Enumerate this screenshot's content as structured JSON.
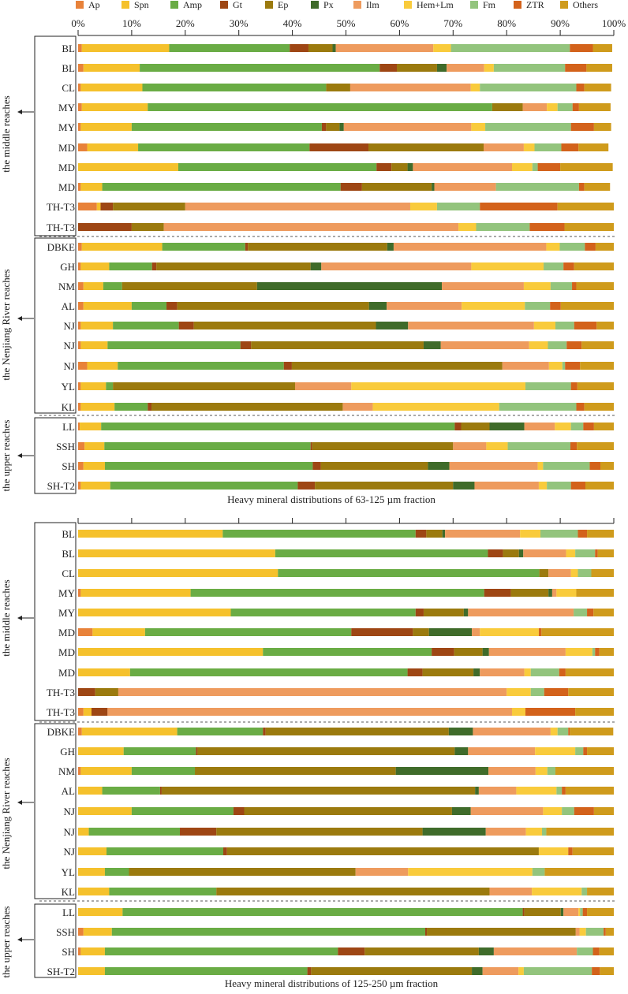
{
  "legend": [
    {
      "name": "Ap",
      "color": "#e8823a"
    },
    {
      "name": "Spn",
      "color": "#f5c12c"
    },
    {
      "name": "Amp",
      "color": "#6aac45"
    },
    {
      "name": "Gt",
      "color": "#9e4614"
    },
    {
      "name": "Ep",
      "color": "#9b7a0e"
    },
    {
      "name": "Px",
      "color": "#3f6b2a"
    },
    {
      "name": "Ilm",
      "color": "#ee9b5e"
    },
    {
      "name": "Hem+Lm",
      "color": "#f9cb3c"
    },
    {
      "name": "Fm",
      "color": "#93c47d"
    },
    {
      "name": "ZTR",
      "color": "#d3621b"
    },
    {
      "name": "Others",
      "color": "#cf9b1c"
    }
  ],
  "chart_data": [
    {
      "type": "bar",
      "orientation": "horizontal",
      "stacked": true,
      "title": "Heavy mineral distributions of 63-125 µm fraction",
      "xlim": [
        0,
        100
      ],
      "xticks": [
        "0%",
        "10%",
        "20%",
        "30%",
        "40%",
        "50%",
        "60%",
        "70%",
        "80%",
        "90%",
        "100%"
      ],
      "groups": [
        {
          "label": "the middle reaches",
          "rows": 10
        },
        {
          "label": "the Nenjiang River reaches",
          "rows": 9
        },
        {
          "label": "the upper reaches",
          "rows": 4
        }
      ],
      "series_names": [
        "Ap",
        "Spn",
        "Amp",
        "Gt",
        "Ep",
        "Px",
        "Ilm",
        "Hem+Lm",
        "Fm",
        "ZTR",
        "Others"
      ],
      "categories": [
        "BL",
        "BL",
        "CL",
        "MY",
        "MY",
        "MD",
        "MD",
        "MD",
        "TH-T3",
        "TH-T3",
        "DBKE",
        "GH",
        "NM",
        "AL",
        "NJ",
        "NJ",
        "NJ",
        "YL",
        "KL",
        "LL",
        "SSH",
        "SH",
        "SH-T2"
      ],
      "values": [
        [
          0.7,
          16.3,
          22.5,
          3.5,
          4.5,
          0.6,
          18.2,
          3.3,
          22.2,
          4.3,
          3.6
        ],
        [
          1.0,
          10.5,
          44.8,
          3.2,
          7.5,
          1.8,
          7.0,
          1.8,
          13.3,
          4.0,
          4.8
        ],
        [
          0.5,
          11.5,
          34.3,
          0,
          4.5,
          0,
          22.5,
          1.7,
          18.0,
          1.5,
          5.0
        ],
        [
          0.7,
          12.3,
          64.3,
          0,
          5.7,
          0,
          4.5,
          2.0,
          2.8,
          1.2,
          5.9
        ],
        [
          0.5,
          9.5,
          35.5,
          0.8,
          2.5,
          0.8,
          23.8,
          2.6,
          16.0,
          4.3,
          3.2
        ],
        [
          1.7,
          9.5,
          32.0,
          11.0,
          21.5,
          0,
          7.5,
          2.0,
          5.0,
          3.2,
          5.6
        ],
        [
          0,
          18.7,
          37.0,
          2.8,
          3.0,
          1.0,
          18.5,
          3.8,
          1.0,
          4.2,
          9.8
        ],
        [
          0.5,
          4.0,
          44.5,
          4.0,
          13.0,
          0.5,
          11.5,
          0,
          15.5,
          1.0,
          4.8
        ],
        [
          3.5,
          0.7,
          0,
          2.3,
          13.5,
          0,
          42.0,
          5.0,
          8.0,
          14.5,
          10.5
        ],
        [
          0,
          0,
          0,
          10.0,
          6.0,
          0,
          55.0,
          3.3,
          10.0,
          6.5,
          9.2
        ],
        [
          0.7,
          15.0,
          15.5,
          0.5,
          26.0,
          1.2,
          28.5,
          2.5,
          4.7,
          2.0,
          3.4
        ],
        [
          0.5,
          5.3,
          8.0,
          0.8,
          28.8,
          2.0,
          28.0,
          13.5,
          3.7,
          2.0,
          7.4
        ],
        [
          1.0,
          3.7,
          3.5,
          0,
          25.2,
          34.5,
          15.3,
          5.0,
          4.0,
          0.8,
          7.0
        ],
        [
          1.0,
          9.0,
          6.5,
          2.0,
          35.8,
          3.3,
          14.0,
          11.8,
          4.7,
          2.0,
          9.9
        ],
        [
          0.5,
          6.0,
          12.3,
          2.8,
          34.0,
          6.0,
          23.5,
          4.0,
          3.5,
          4.2,
          3.2
        ],
        [
          0.5,
          5.0,
          24.8,
          2.0,
          32.2,
          3.2,
          16.5,
          3.5,
          3.5,
          2.8,
          6.0
        ],
        [
          1.7,
          5.7,
          31.0,
          1.5,
          39.3,
          0,
          8.7,
          2.5,
          0.5,
          2.8,
          6.3
        ],
        [
          0.5,
          4.7,
          1.3,
          0,
          34.0,
          0,
          10.5,
          32.5,
          8.5,
          1.2,
          6.8
        ],
        [
          0.5,
          6.3,
          6.2,
          0.7,
          35.7,
          0,
          5.6,
          23.6,
          14.4,
          1.5,
          5.5
        ]
      ],
      "values_more": [
        [
          0.3,
          4.0,
          66.0,
          1.2,
          5.3,
          6.5,
          5.7,
          3.0,
          2.3,
          2.0,
          3.7
        ],
        [
          1.2,
          3.7,
          38.5,
          0.3,
          26.3,
          0,
          6.2,
          4.0,
          11.7,
          1.2,
          6.9
        ],
        [
          1.0,
          4.0,
          38.8,
          1.5,
          20.0,
          4.0,
          16.5,
          1.0,
          8.7,
          2.0,
          2.5
        ],
        [
          0.5,
          5.5,
          35.0,
          3.2,
          25.8,
          4.0,
          12.0,
          1.5,
          4.5,
          2.7,
          5.3
        ]
      ]
    },
    {
      "type": "bar",
      "orientation": "horizontal",
      "stacked": true,
      "title": "Heavy mineral distributions of 125-250 µm fraction",
      "xlim": [
        0,
        100
      ],
      "groups": [
        {
          "label": "the middle reaches",
          "rows": 10
        },
        {
          "label": "the Nenjiang River reaches",
          "rows": 9
        },
        {
          "label": "the upper reaches",
          "rows": 4
        }
      ],
      "series_names": [
        "Ap",
        "Spn",
        "Amp",
        "Gt",
        "Ep",
        "Px",
        "Ilm",
        "Hem+Lm",
        "Fm",
        "ZTR",
        "Others"
      ],
      "categories": [
        "BL",
        "BL",
        "CL",
        "MY",
        "MY",
        "MD",
        "MD",
        "MD",
        "TH-T3",
        "TH-T3",
        "DBKE",
        "GH",
        "NM",
        "AL",
        "NJ",
        "NJ",
        "NJ",
        "YL",
        "KL",
        "LL",
        "SSH",
        "SH",
        "SH-T2"
      ],
      "values": [
        [
          0,
          27.0,
          36.0,
          2.0,
          3.0,
          0.5,
          14.0,
          3.8,
          7.0,
          1.7,
          5.0
        ],
        [
          0,
          36.8,
          39.7,
          2.8,
          3.0,
          0.8,
          8.0,
          1.7,
          3.7,
          0.5,
          3.0
        ],
        [
          0,
          37.3,
          48.8,
          0,
          1.7,
          0,
          4.2,
          1.3,
          2.5,
          0,
          4.2
        ],
        [
          0.5,
          20.5,
          54.8,
          5.0,
          7.0,
          0.7,
          0.8,
          3.7,
          0,
          0,
          7.0
        ],
        [
          0,
          28.5,
          34.5,
          1.5,
          7.5,
          0.8,
          19.7,
          0,
          2.5,
          1.2,
          3.8
        ],
        [
          2.7,
          9.8,
          38.5,
          11.5,
          3.0,
          8.0,
          1.5,
          11.0,
          0,
          0.5,
          13.5
        ],
        [
          0,
          34.5,
          31.5,
          4.2,
          5.3,
          1.2,
          14.3,
          5.0,
          0.5,
          0.8,
          2.7
        ],
        [
          0,
          9.7,
          51.8,
          2.8,
          9.5,
          1.2,
          8.3,
          1.2,
          5.3,
          1.2,
          9.0
        ],
        [
          0,
          0,
          0,
          3.2,
          4.3,
          0,
          72.5,
          4.5,
          2.5,
          4.5,
          8.5
        ],
        [
          1.0,
          1.5,
          0,
          3.0,
          0,
          0,
          75.5,
          2.5,
          0,
          9.3,
          7.2
        ],
        [
          0.7,
          17.8,
          16.0,
          0.5,
          34.2,
          4.5,
          14.5,
          1.3,
          2.0,
          0.3,
          8.1
        ],
        [
          0,
          8.5,
          13.5,
          0.3,
          48.0,
          2.5,
          12.5,
          7.5,
          1.5,
          0.7,
          5.0
        ],
        [
          0.5,
          9.5,
          11.8,
          0,
          37.5,
          17.3,
          8.8,
          2.2,
          1.5,
          0,
          10.9
        ],
        [
          0,
          4.5,
          10.8,
          0.3,
          58.5,
          0.7,
          7.0,
          7.5,
          1.0,
          0.7,
          9.0
        ],
        [
          0,
          10.0,
          19.0,
          2.0,
          38.8,
          3.5,
          13.5,
          3.5,
          2.3,
          3.7,
          3.7
        ],
        [
          0,
          2.0,
          17.0,
          6.8,
          38.5,
          11.8,
          7.5,
          3.0,
          0.8,
          0,
          12.6
        ],
        [
          0,
          5.3,
          21.8,
          0.7,
          58.2,
          0,
          0,
          5.5,
          0,
          0.8,
          7.7
        ],
        [
          0,
          5.0,
          4.5,
          0,
          42.3,
          0,
          9.8,
          23.2,
          2.3,
          0,
          12.9
        ],
        [
          0,
          5.8,
          20.0,
          0,
          51.0,
          0,
          7.9,
          9.3,
          1.0,
          0,
          5.0
        ]
      ],
      "values_more": [
        [
          0,
          8.3,
          74.7,
          0.3,
          6.8,
          0.5,
          2.8,
          0.3,
          0.5,
          0.8,
          5.0
        ],
        [
          1.0,
          5.3,
          58.5,
          0.3,
          27.8,
          0,
          0.7,
          1.2,
          3.3,
          0.4,
          1.5
        ],
        [
          0.5,
          4.5,
          43.5,
          5.0,
          21.3,
          2.8,
          15.5,
          0,
          3.0,
          1.2,
          2.7
        ],
        [
          0,
          5.0,
          37.8,
          0.7,
          30.0,
          2.0,
          6.7,
          1.0,
          12.7,
          1.5,
          2.6
        ]
      ]
    }
  ]
}
